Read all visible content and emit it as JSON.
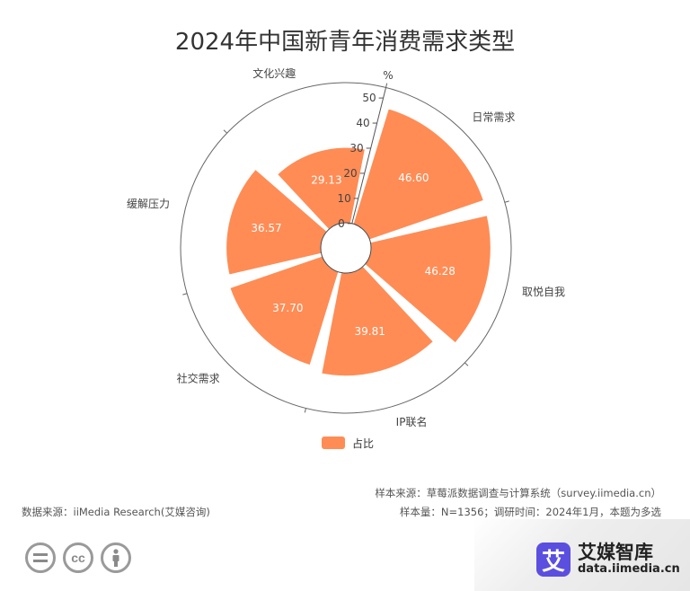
{
  "title": "2024年中国新青年消费需求类型",
  "chart_data": {
    "type": "polar-bar",
    "title": "2024年中国新青年消费需求类型",
    "unit": "%",
    "radial_ticks": [
      0,
      10,
      20,
      30,
      40,
      50
    ],
    "rlim": [
      0,
      50
    ],
    "categories": [
      "日常需求",
      "取悦自我",
      "IP联名",
      "社交需求",
      "缓解压力",
      "文化兴趣"
    ],
    "series": [
      {
        "name": "占比",
        "values": [
          46.6,
          46.28,
          39.81,
          37.7,
          36.57,
          29.13
        ],
        "color": "#ff8c55"
      }
    ],
    "legend_position": "bottom"
  },
  "legend": {
    "label": "占比",
    "color": "#ff8c55"
  },
  "footer": {
    "sample_source": "样本来源：草莓派数据调查与计算系统（survey.iimedia.cn）",
    "sample_info": "样本量：N=1356；调研时间：2024年1月，本题为多选",
    "data_source": "数据来源：iiMedia Research(艾媒咨询)"
  },
  "brand": {
    "logo_char": "艾",
    "name": "艾媒智库",
    "url": "data.iimedia.cn"
  },
  "license_icons": [
    "equals-icon",
    "cc-icon",
    "person-icon"
  ],
  "license_glyphs": {
    "cc": "cc"
  }
}
